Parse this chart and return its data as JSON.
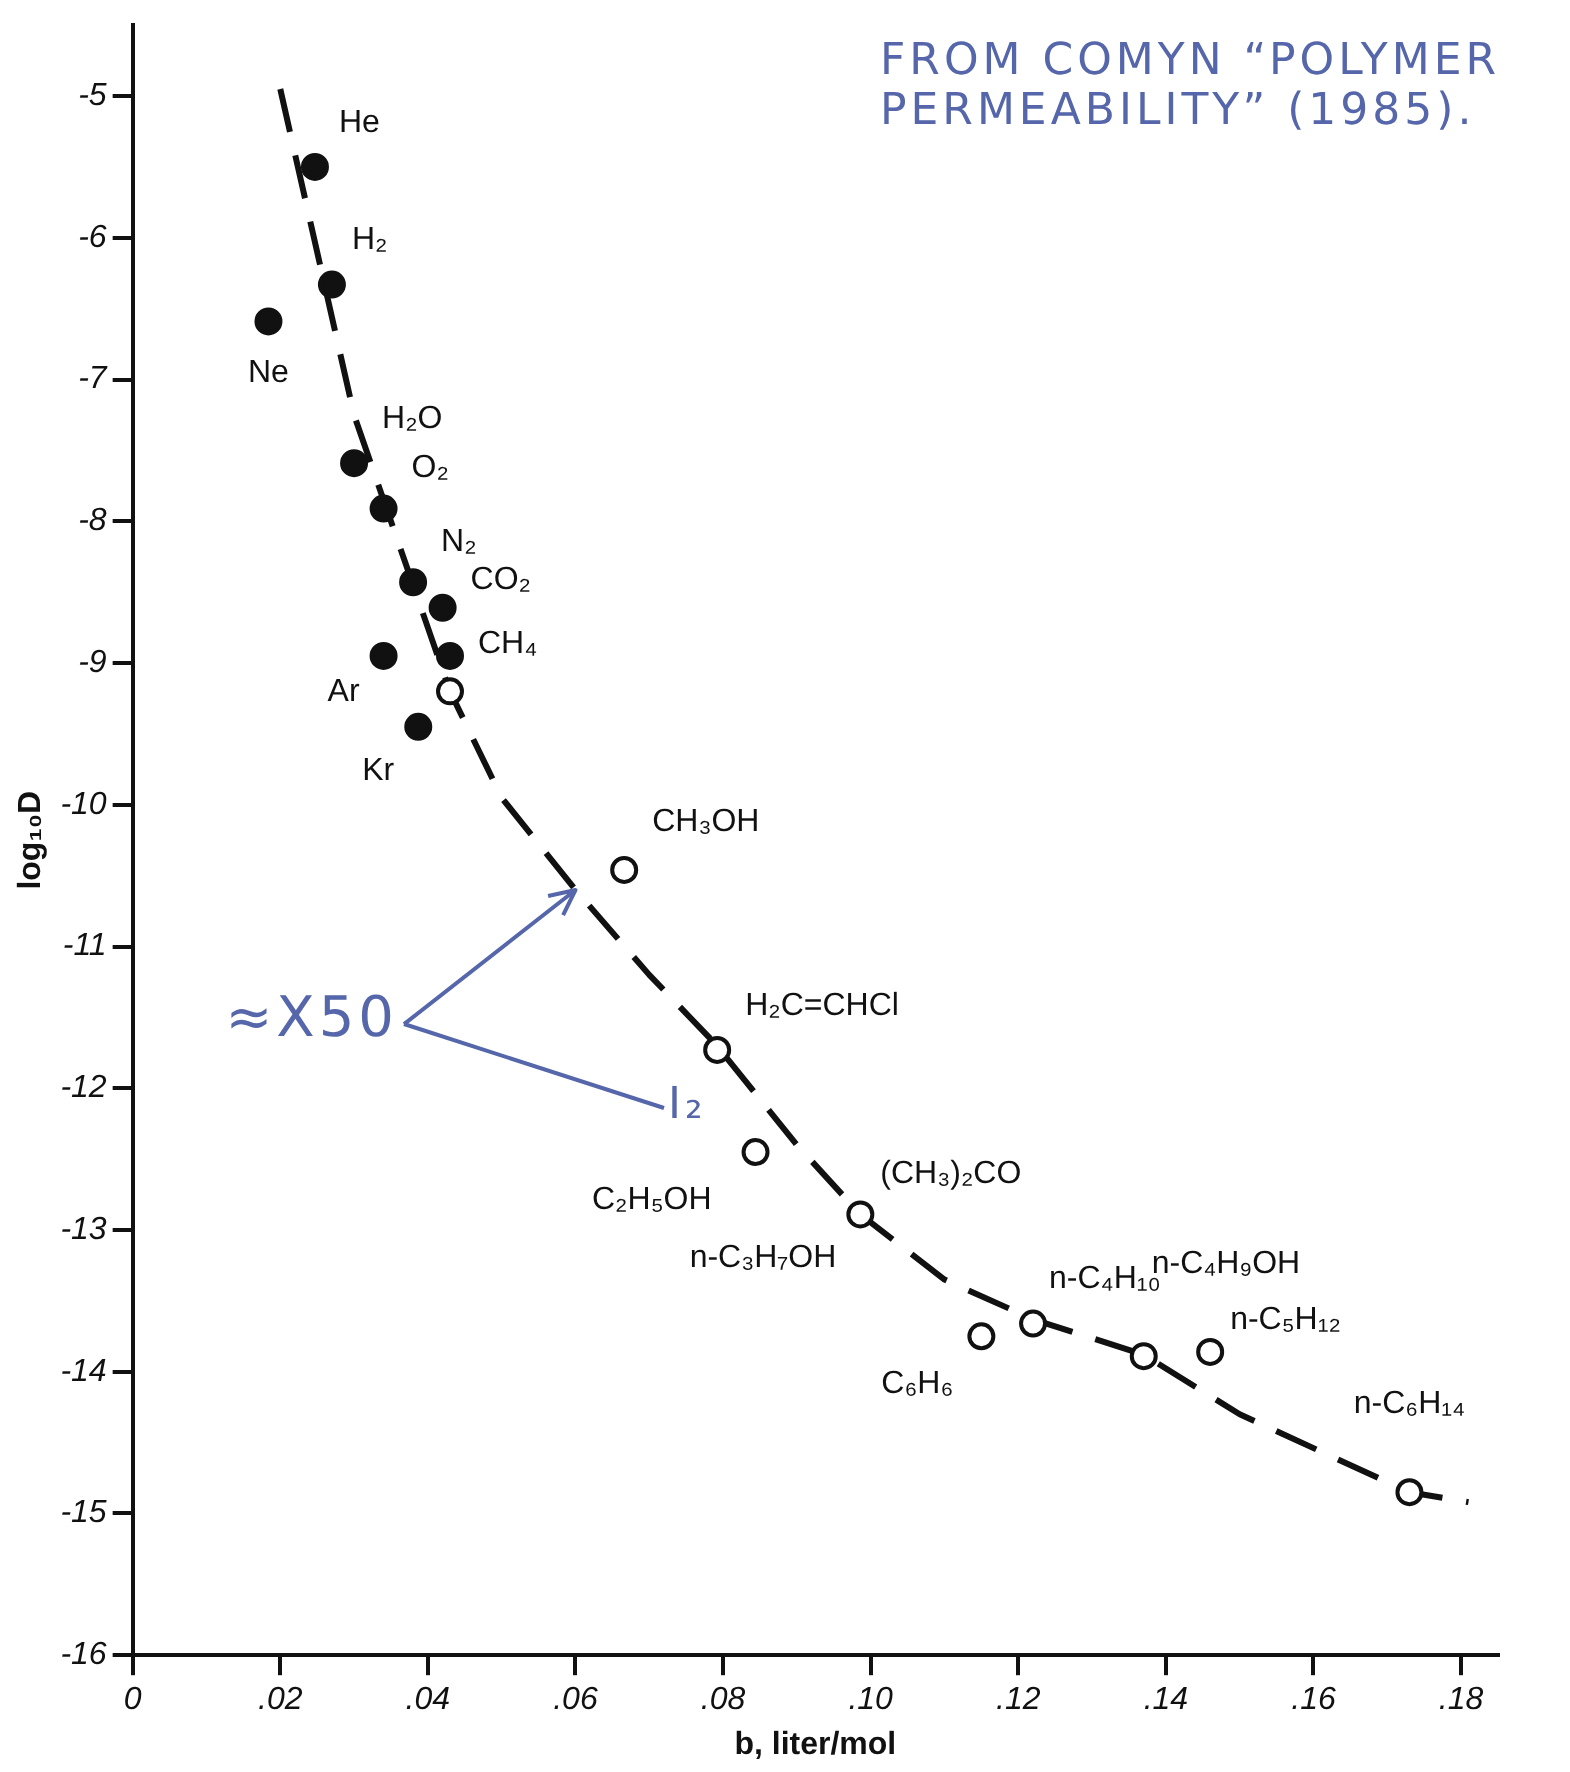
{
  "chart_data": {
    "type": "scatter",
    "xlabel": "b, liter/mol",
    "ylabel": "log₁₀D",
    "xlim": [
      0,
      0.185
    ],
    "xticks": [
      0,
      {
        "value": 0.02,
        "label": ".02"
      },
      {
        "value": 0.04,
        "label": ".04"
      },
      {
        "value": 0.06,
        "label": ".06"
      },
      {
        "value": 0.08,
        "label": ".08"
      },
      {
        "value": 0.1,
        "label": ".10"
      },
      {
        "value": 0.12,
        "label": ".12"
      },
      {
        "value": 0.14,
        "label": ".14"
      },
      {
        "value": 0.16,
        "label": ".16"
      },
      {
        "value": 0.18,
        "label": ".18"
      }
    ],
    "ylim": [
      -16,
      -4.5
    ],
    "yticks": [
      -16,
      -15,
      -14,
      -13,
      -12,
      -11,
      -10,
      -9,
      -8,
      -7,
      -6,
      -5
    ],
    "grid": false,
    "legend": false,
    "series": [
      {
        "color": "#111111",
        "marker": "circle",
        "x": [
          0.0247,
          0.027,
          0.0184,
          0.03,
          0.034,
          0.038,
          0.042,
          0.043,
          0.034,
          0.0387
        ],
        "values": [
          -5.5,
          -6.33,
          -6.59,
          -7.59,
          -7.91,
          -8.43,
          -8.61,
          -8.95,
          -8.95,
          -9.45
        ]
      },
      {
        "color": "#111111",
        "marker": "circle",
        "x": [
          0.043,
          0.0666,
          0.0792,
          0.0844,
          0.0986,
          0.115,
          0.122,
          0.137,
          0.146,
          0.173
        ],
        "values": [
          -9.2,
          -10.46,
          -11.73,
          -12.45,
          -12.89,
          -13.75,
          -13.66,
          -13.89,
          -13.86,
          -14.85
        ]
      },
      {
        "type": "line",
        "color": "#111111",
        "line_style": "dashed",
        "marker": "none",
        "x": [
          0.02,
          0.03,
          0.038,
          0.043,
          0.05,
          0.06,
          0.07,
          0.079,
          0.09,
          0.0986,
          0.11,
          0.122,
          0.137,
          0.15,
          0.173,
          0.181
        ],
        "values": [
          -4.95,
          -7.25,
          -8.45,
          -9.2,
          -9.95,
          -10.6,
          -11.2,
          -11.69,
          -12.4,
          -12.89,
          -13.35,
          -13.63,
          -13.88,
          -14.3,
          -14.85,
          -14.92
        ]
      }
    ],
    "annotations": [
      "FROM COMYN “POLYMER PERMEABILITY” (1985).",
      {
        "text": "≈X50",
        "x": 0.06,
        "y": -10.6
      },
      "I₂",
      {
        "text": "He",
        "x": 0.0247,
        "y": -5.5
      },
      {
        "text": "H₂",
        "x": 0.027,
        "y": -6.33
      },
      {
        "text": "Ne",
        "x": 0.0184,
        "y": -6.59
      },
      {
        "text": "H₂O",
        "x": 0.03,
        "y": -7.59
      },
      {
        "text": "O₂",
        "x": 0.034,
        "y": -7.91
      },
      {
        "text": "N₂",
        "x": 0.038,
        "y": -8.43
      },
      {
        "text": "CO₂",
        "x": 0.042,
        "y": -8.61
      },
      {
        "text": "CH₄",
        "x": 0.043,
        "y": -8.95
      },
      {
        "text": "Ar",
        "x": 0.034,
        "y": -8.95
      },
      {
        "text": "Kr",
        "x": 0.0387,
        "y": -9.45
      },
      {
        "text": "CH₃OH",
        "x": 0.0666,
        "y": -10.46
      },
      {
        "text": "H₂C=CHCl",
        "x": 0.0792,
        "y": -11.73
      },
      {
        "text": "C₂H₅OH",
        "x": 0.0844,
        "y": -12.45
      },
      {
        "text": "(CH₃)₂CO",
        "x": 0.0986,
        "y": -12.89
      },
      {
        "text": "n-C₃H₇OH",
        "x": 0.0986,
        "y": -12.89
      },
      {
        "text": "C₆H₆",
        "x": 0.115,
        "y": -13.75
      },
      {
        "text": "n-C₄H₁₀",
        "x": 0.122,
        "y": -13.66
      },
      {
        "text": "n-C₄H₉OH",
        "x": 0.137,
        "y": -13.89
      },
      {
        "text": "n-C₅H₁₂",
        "x": 0.146,
        "y": -13.86
      },
      {
        "text": "n-C₆H₁₄",
        "x": 0.173,
        "y": -14.85
      }
    ]
  }
}
